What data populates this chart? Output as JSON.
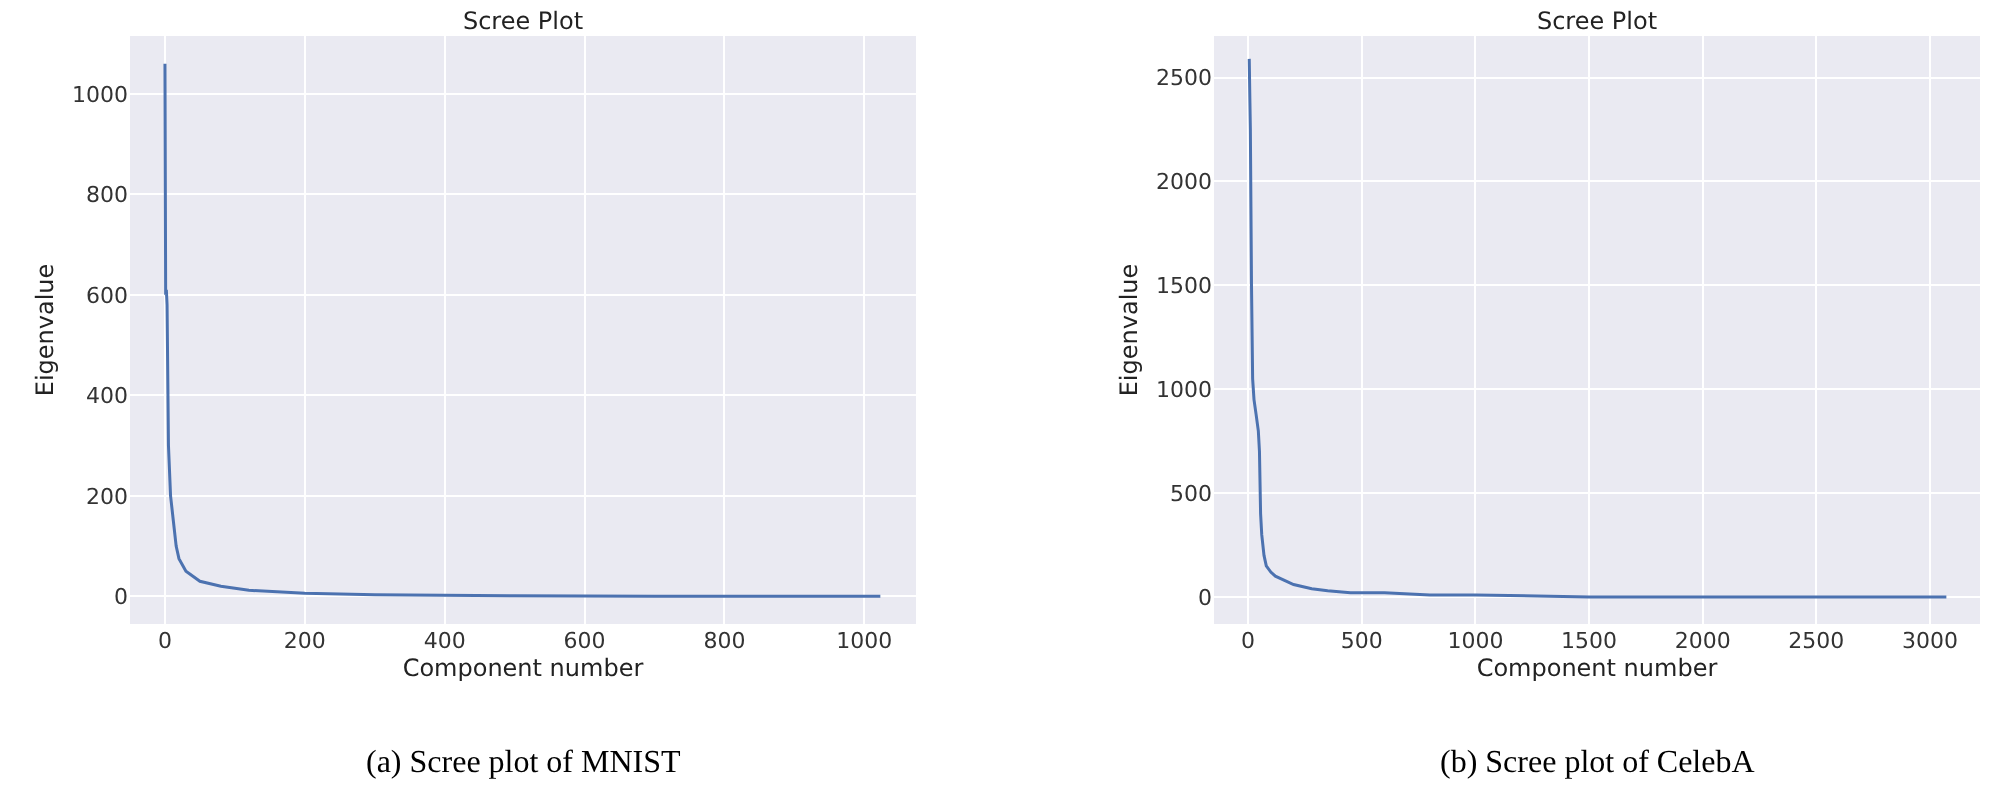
{
  "chart_data": [
    {
      "type": "line",
      "title": "Scree Plot",
      "xlabel": "Component number",
      "ylabel": "Eigenvalue",
      "annotations": [
        "(a) Scree plot of MNIST"
      ],
      "grid": true,
      "xlim": [
        -50,
        1074
      ],
      "xticks": [
        0,
        200,
        400,
        600,
        800,
        1000
      ],
      "ylim": [
        -55,
        1115
      ],
      "yticks": [
        0,
        200,
        400,
        600,
        800,
        1000
      ],
      "series": [
        {
          "color": "#4c72b0",
          "x": [
            0,
            1,
            2,
            3,
            5,
            8,
            12,
            16,
            20,
            30,
            50,
            80,
            120,
            200,
            300,
            500,
            700,
            1023
          ],
          "values": [
            1060,
            600,
            610,
            580,
            300,
            200,
            150,
            100,
            75,
            50,
            30,
            20,
            12,
            6,
            3,
            1,
            0,
            0
          ]
        }
      ]
    },
    {
      "type": "line",
      "title": "Scree Plot",
      "xlabel": "Component number",
      "ylabel": "Eigenvalue",
      "annotations": [
        "(b) Scree plot of CelebA"
      ],
      "grid": true,
      "xlim": [
        -150,
        3220
      ],
      "xticks": [
        0,
        500,
        1000,
        1500,
        2000,
        2500,
        3000
      ],
      "ylim": [
        -130,
        2700
      ],
      "yticks": [
        0,
        500,
        1000,
        1500,
        2000,
        2500
      ],
      "series": [
        {
          "color": "#4c72b0",
          "x": [
            5,
            8,
            10,
            15,
            20,
            26,
            35,
            45,
            50,
            55,
            60,
            70,
            80,
            100,
            120,
            160,
            200,
            280,
            350,
            450,
            600,
            800,
            1000,
            1500,
            2000,
            2500,
            3072
          ],
          "values": [
            2590,
            2380,
            2250,
            1500,
            1050,
            950,
            880,
            800,
            700,
            400,
            300,
            200,
            150,
            120,
            100,
            80,
            60,
            40,
            30,
            20,
            20,
            10,
            10,
            0,
            0,
            0,
            0
          ]
        }
      ]
    }
  ]
}
